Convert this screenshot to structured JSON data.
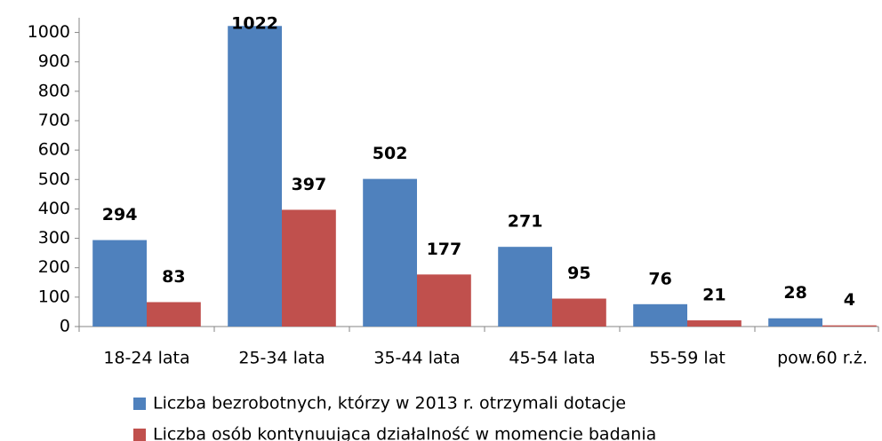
{
  "chart_data": {
    "type": "bar",
    "categories": [
      "18-24 lata",
      "25-34 lata",
      "35-44 lata",
      "45-54 lata",
      "55-59 lat",
      "pow.60 r.ż."
    ],
    "series": [
      {
        "name": "Liczba bezrobotnych, którzy w 2013 r. otrzymali dotacje",
        "color": "#4f81bd",
        "values": [
          294,
          1022,
          502,
          271,
          76,
          28
        ]
      },
      {
        "name": "Liczba osób kontynuująca działalność w momencie badania",
        "color": "#c0504d",
        "values": [
          83,
          397,
          177,
          95,
          21,
          4
        ]
      }
    ],
    "ylim": [
      0,
      1050
    ],
    "yticks": [
      0,
      100,
      200,
      300,
      400,
      500,
      600,
      700,
      800,
      900,
      1000
    ],
    "grid": false,
    "legend": "bottom"
  }
}
